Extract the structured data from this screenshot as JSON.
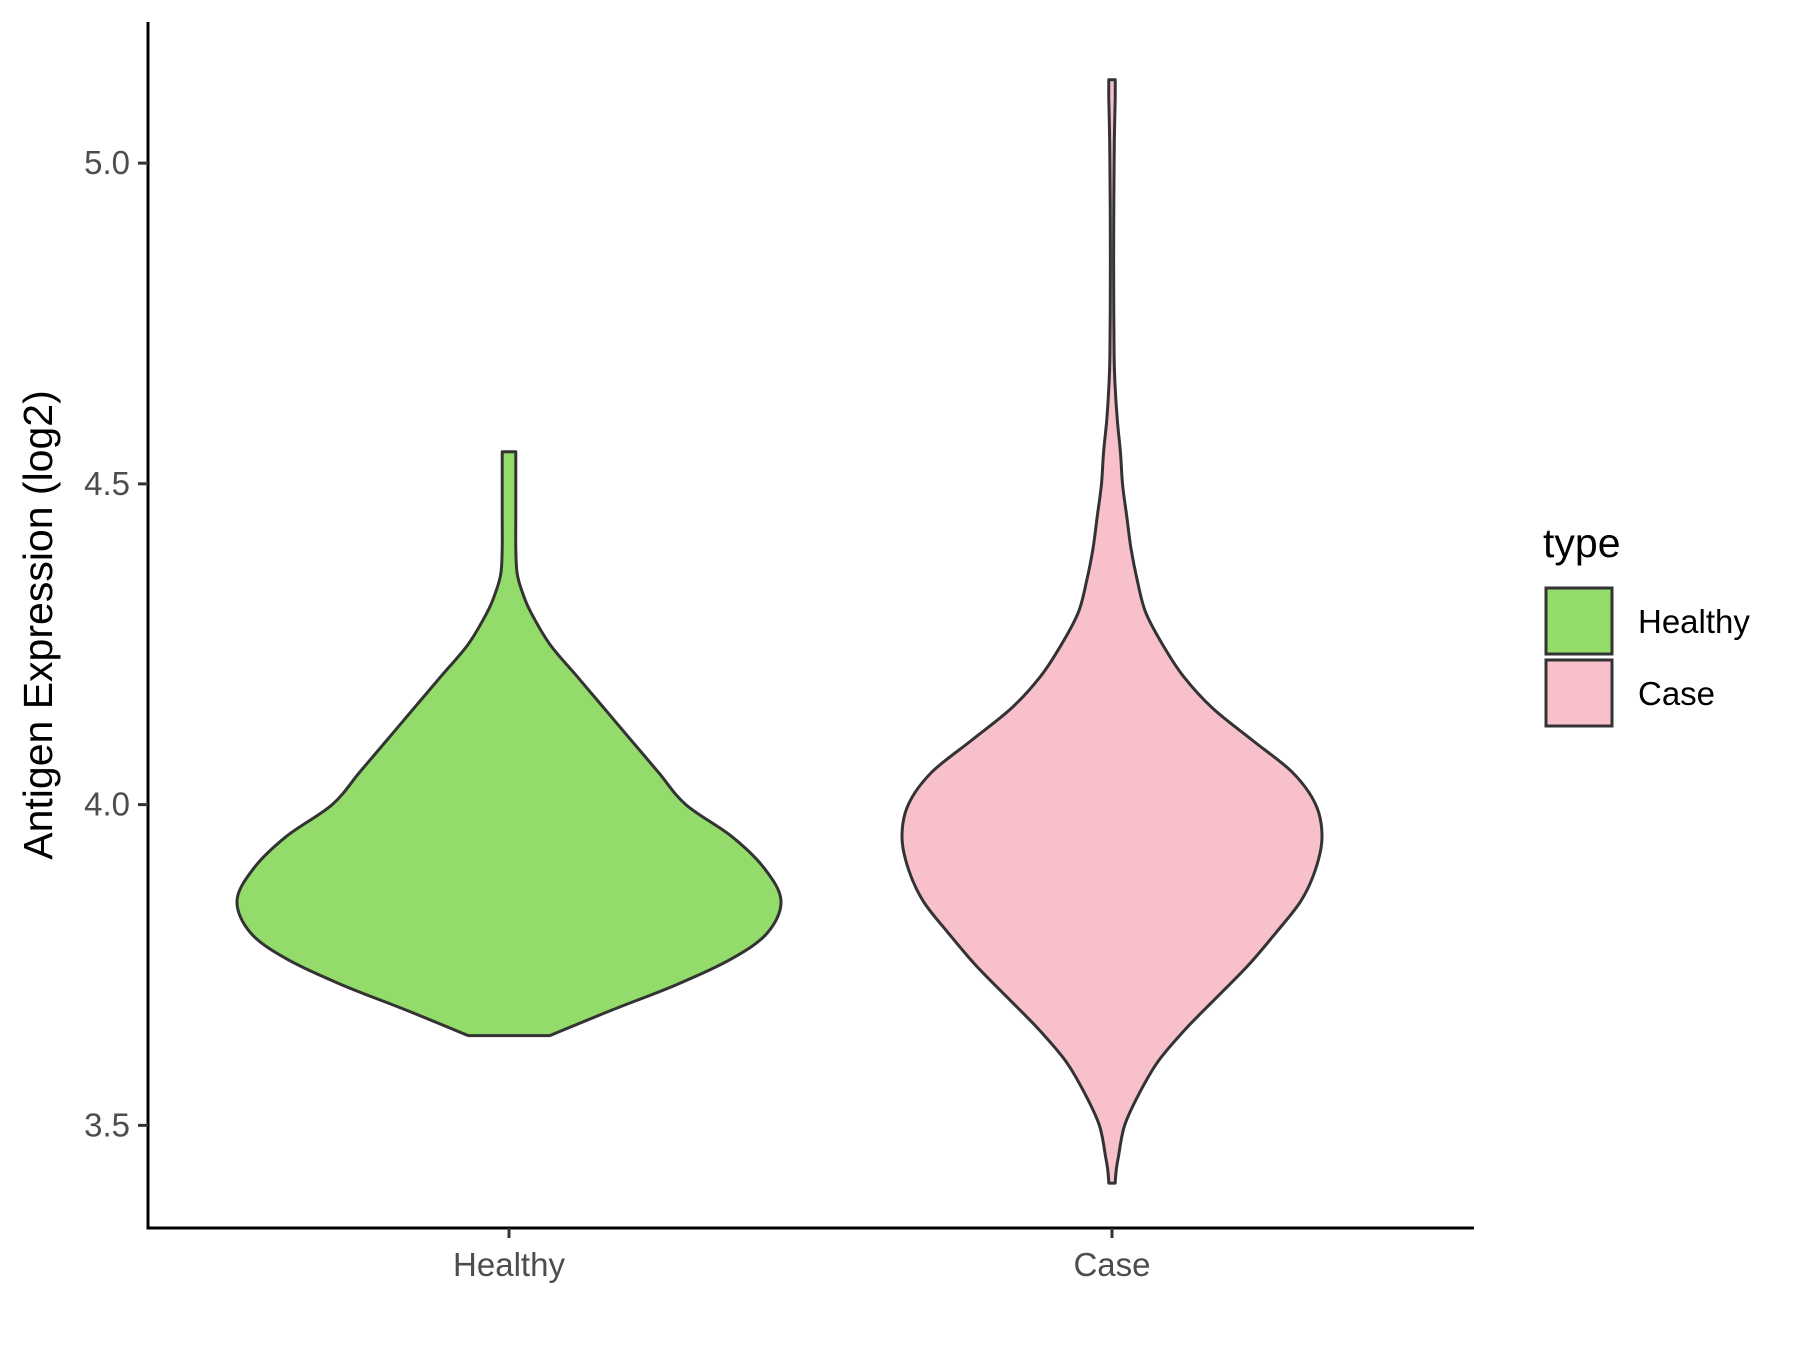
{
  "chart_data": {
    "type": "violin",
    "ylabel": "Antigen Expression (log2)",
    "xlabel": "",
    "categories": [
      "Healthy",
      "Case"
    ],
    "ylim": [
      3.34,
      5.22
    ],
    "yticks": [
      3.5,
      4.0,
      4.5,
      5.0
    ],
    "ytick_labels": [
      "3.5",
      "4.0",
      "4.5",
      "5.0"
    ],
    "legend": {
      "title": "type",
      "position": "right",
      "entries": [
        {
          "label": "Healthy",
          "color": "#93dc6b"
        },
        {
          "label": "Case",
          "color": "#f8c0ca"
        }
      ]
    },
    "series": [
      {
        "category": "Healthy",
        "color": "#93dc6b",
        "y_min": 3.64,
        "y_max": 4.55,
        "density_profile": [
          [
            3.64,
            0.15
          ],
          [
            3.68,
            0.38
          ],
          [
            3.72,
            0.62
          ],
          [
            3.76,
            0.82
          ],
          [
            3.8,
            0.95
          ],
          [
            3.85,
            1.0
          ],
          [
            3.9,
            0.94
          ],
          [
            3.95,
            0.82
          ],
          [
            4.0,
            0.65
          ],
          [
            4.05,
            0.55
          ],
          [
            4.1,
            0.45
          ],
          [
            4.15,
            0.35
          ],
          [
            4.2,
            0.25
          ],
          [
            4.25,
            0.15
          ],
          [
            4.3,
            0.08
          ],
          [
            4.33,
            0.05
          ],
          [
            4.36,
            0.03
          ],
          [
            4.4,
            0.025
          ],
          [
            4.45,
            0.025
          ],
          [
            4.5,
            0.025
          ],
          [
            4.55,
            0.025
          ]
        ]
      },
      {
        "category": "Case",
        "color": "#f8c0ca",
        "y_min": 3.41,
        "y_max": 5.13,
        "density_profile": [
          [
            3.41,
            0.015
          ],
          [
            3.43,
            0.02
          ],
          [
            3.45,
            0.03
          ],
          [
            3.5,
            0.06
          ],
          [
            3.55,
            0.13
          ],
          [
            3.6,
            0.22
          ],
          [
            3.65,
            0.35
          ],
          [
            3.7,
            0.5
          ],
          [
            3.75,
            0.65
          ],
          [
            3.8,
            0.78
          ],
          [
            3.85,
            0.9
          ],
          [
            3.9,
            0.97
          ],
          [
            3.95,
            1.0
          ],
          [
            4.0,
            0.97
          ],
          [
            4.05,
            0.86
          ],
          [
            4.1,
            0.67
          ],
          [
            4.15,
            0.48
          ],
          [
            4.2,
            0.34
          ],
          [
            4.25,
            0.24
          ],
          [
            4.3,
            0.16
          ],
          [
            4.35,
            0.12
          ],
          [
            4.4,
            0.09
          ],
          [
            4.45,
            0.07
          ],
          [
            4.5,
            0.05
          ],
          [
            4.55,
            0.04
          ],
          [
            4.6,
            0.025
          ],
          [
            4.65,
            0.015
          ],
          [
            4.7,
            0.01
          ],
          [
            4.8,
            0.008
          ],
          [
            4.9,
            0.008
          ],
          [
            5.0,
            0.01
          ],
          [
            5.05,
            0.012
          ],
          [
            5.1,
            0.015
          ],
          [
            5.13,
            0.015
          ]
        ]
      }
    ]
  }
}
